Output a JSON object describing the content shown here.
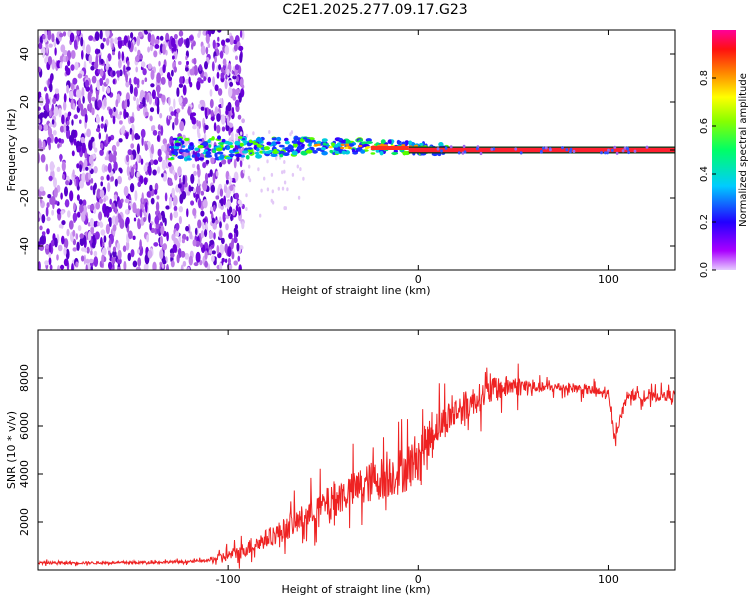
{
  "page_title": "C2E1.2025.277.09.17.G23",
  "colors": {
    "snr_line": "#ee2222",
    "carrier": "#ff2030",
    "frame": "#000000"
  },
  "chart_data": [
    {
      "type": "heatmap",
      "name": "spectrogram",
      "title": "C2E1.2025.277.09.17.G23",
      "xlabel": "Height of straight line (km)",
      "ylabel": "Frequency (Hz)",
      "xlim": [
        -200,
        135
      ],
      "ylim": [
        -50,
        50
      ],
      "xticks": [
        -100,
        0,
        100
      ],
      "xtick_labels": [
        "-100",
        "0",
        "100"
      ],
      "yticks": [
        -40,
        -20,
        0,
        20,
        40
      ],
      "ytick_labels": [
        "-40",
        "-20",
        "0",
        "20",
        "40"
      ],
      "noise_region_km": [
        -200,
        -100
      ],
      "signal_frequency_hz": 0,
      "colorbar": {
        "label": "Normalized spectral amplitude",
        "range": [
          0,
          1
        ],
        "ticks": [
          0.0,
          0.2,
          0.4,
          0.6,
          0.8
        ],
        "tick_labels": [
          "0.0",
          "0.2",
          "0.4",
          "0.6",
          "0.8"
        ],
        "colormap": "hsv-reversed (violet to red)"
      }
    },
    {
      "type": "line",
      "name": "snr",
      "xlabel": "Height of straight line (km)",
      "ylabel": "SNR (10 * v/v)",
      "xlim": [
        -200,
        135
      ],
      "ylim": [
        0,
        10000
      ],
      "xticks": [
        -100,
        0,
        100
      ],
      "xtick_labels": [
        "-100",
        "0",
        "100"
      ],
      "yticks": [
        2000,
        4000,
        6000,
        8000
      ],
      "ytick_labels": [
        "2000",
        "4000",
        "6000",
        "8000"
      ],
      "x": [
        -200,
        -180,
        -160,
        -140,
        -120,
        -110,
        -100,
        -90,
        -80,
        -70,
        -60,
        -50,
        -40,
        -30,
        -20,
        -10,
        -5,
        0,
        5,
        10,
        20,
        30,
        40,
        50,
        60,
        70,
        80,
        90,
        100,
        103,
        110,
        120,
        135
      ],
      "y": [
        300,
        300,
        300,
        320,
        350,
        400,
        600,
        900,
        1300,
        1700,
        2200,
        2700,
        3100,
        3500,
        3800,
        4100,
        4300,
        4800,
        5400,
        6000,
        6600,
        7100,
        7500,
        7700,
        7600,
        7600,
        7600,
        7500,
        7300,
        5500,
        7300,
        7200,
        7300
      ]
    }
  ]
}
